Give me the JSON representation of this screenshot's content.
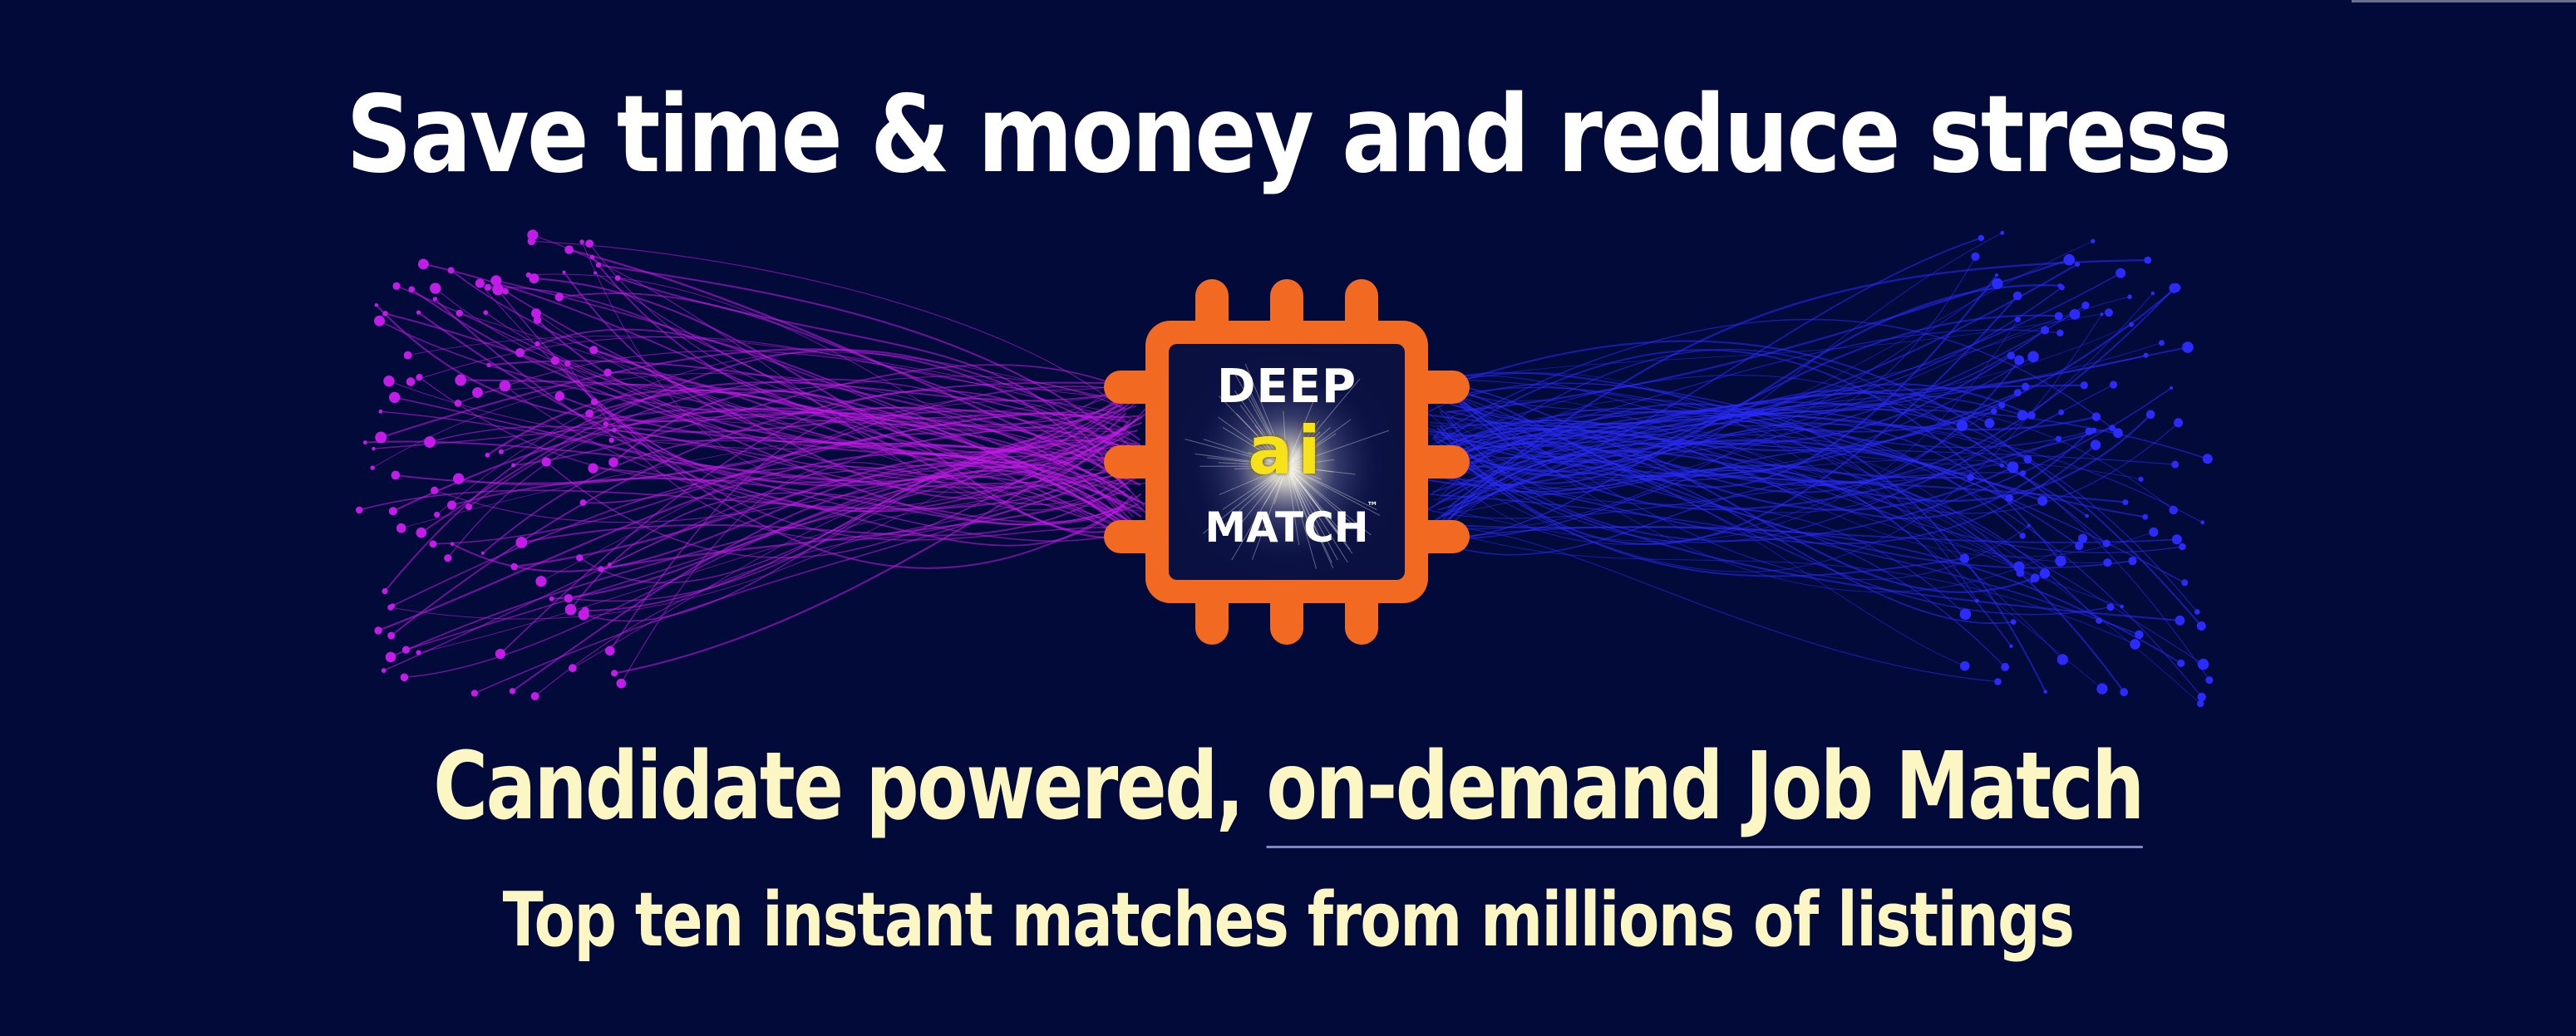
{
  "banner": {
    "headline": "Save time & money and reduce stress",
    "tagline_prefix": "Candidate powered, ",
    "tagline_link": "on-demand Job Match",
    "subline": "Top ten instant matches from millions of listings"
  },
  "logo": {
    "line1": "DEEP",
    "line2": "ai",
    "line3": "MATCH",
    "trademark": "™",
    "icon": "chip-icon"
  },
  "colors": {
    "background": "#020a3a",
    "chip_orange": "#f26a22",
    "ai_yellow": "#f7e21a",
    "left_fibers": "#c41be8",
    "right_fibers": "#2a2cff",
    "tagline": "#fbf6c4"
  }
}
